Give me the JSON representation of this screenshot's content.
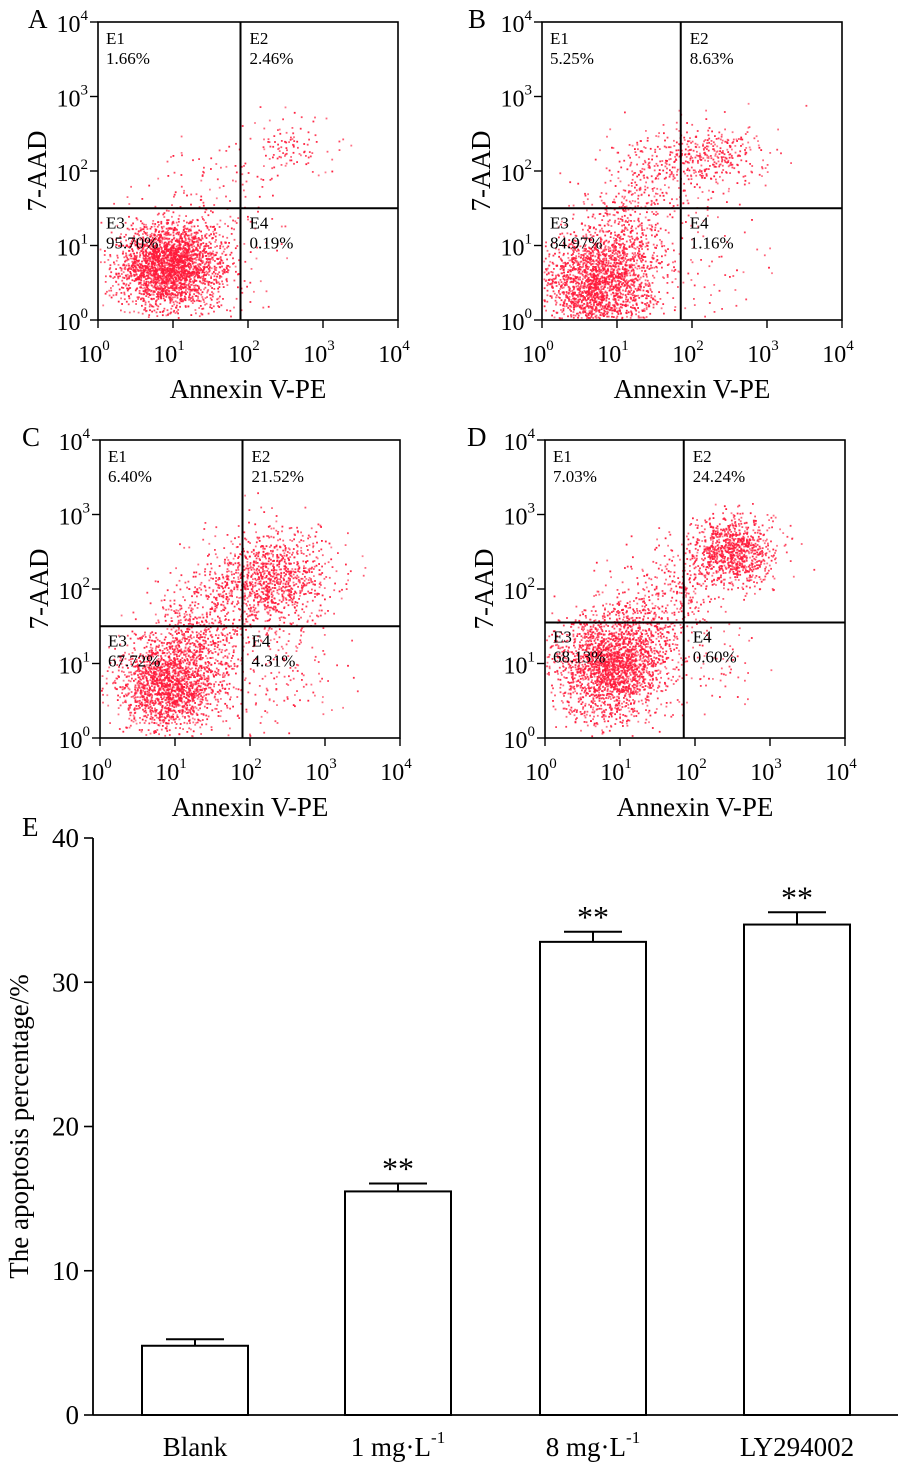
{
  "chart_data": [
    {
      "type": "scatter",
      "panel": "A",
      "xlabel": "Annexin V-PE",
      "ylabel": "7-AAD",
      "xlim": [
        0,
        4
      ],
      "ylim": [
        0,
        4
      ],
      "scale": "log10",
      "tick_exponents": [
        "0",
        "1",
        "2",
        "3",
        "4"
      ],
      "gate": {
        "x": 1.9,
        "y": 1.5
      },
      "quadrants": [
        {
          "id": "E1",
          "label": "E1",
          "value": "1.66%"
        },
        {
          "id": "E2",
          "label": "E2",
          "value": "2.46%"
        },
        {
          "id": "E3",
          "label": "E3",
          "value": "95.70%"
        },
        {
          "id": "E4",
          "label": "E4",
          "value": "0.19%"
        }
      ],
      "clusters": [
        {
          "cx": 0.95,
          "cy": 0.72,
          "sx": 0.34,
          "sy": 0.29,
          "n": 2400
        },
        {
          "cx": 1.15,
          "cy": 0.85,
          "sx": 0.55,
          "sy": 0.45,
          "n": 300
        },
        {
          "cx": 2.55,
          "cy": 2.3,
          "sx": 0.3,
          "sy": 0.2,
          "n": 110
        },
        {
          "cx": 1.55,
          "cy": 1.85,
          "sx": 0.45,
          "sy": 0.25,
          "n": 60
        }
      ]
    },
    {
      "type": "scatter",
      "panel": "B",
      "xlabel": "Annexin V-PE",
      "ylabel": "7-AAD",
      "xlim": [
        0,
        4
      ],
      "ylim": [
        0,
        4
      ],
      "scale": "log10",
      "tick_exponents": [
        "0",
        "1",
        "2",
        "3",
        "4"
      ],
      "gate": {
        "x": 1.85,
        "y": 1.5
      },
      "quadrants": [
        {
          "id": "E1",
          "label": "E1",
          "value": "5.25%"
        },
        {
          "id": "E2",
          "label": "E2",
          "value": "8.63%"
        },
        {
          "id": "E3",
          "label": "E3",
          "value": "84.97%"
        },
        {
          "id": "E4",
          "label": "E4",
          "value": "1.16%"
        }
      ],
      "clusters": [
        {
          "cx": 0.75,
          "cy": 0.45,
          "sx": 0.38,
          "sy": 0.34,
          "n": 1900
        },
        {
          "cx": 1.1,
          "cy": 1.0,
          "sx": 0.3,
          "sy": 0.5,
          "n": 500
        },
        {
          "cx": 2.15,
          "cy": 2.2,
          "sx": 0.42,
          "sy": 0.22,
          "n": 400
        },
        {
          "cx": 1.45,
          "cy": 1.8,
          "sx": 0.35,
          "sy": 0.28,
          "n": 150
        },
        {
          "cx": 2.1,
          "cy": 0.9,
          "sx": 0.5,
          "sy": 0.6,
          "n": 80
        }
      ]
    },
    {
      "type": "scatter",
      "panel": "C",
      "xlabel": "Annexin V-PE",
      "ylabel": "7-AAD",
      "xlim": [
        0,
        4
      ],
      "ylim": [
        0,
        4
      ],
      "scale": "log10",
      "tick_exponents": [
        "0",
        "1",
        "2",
        "3",
        "4"
      ],
      "gate": {
        "x": 1.9,
        "y": 1.5
      },
      "quadrants": [
        {
          "id": "E1",
          "label": "E1",
          "value": "6.40%"
        },
        {
          "id": "E2",
          "label": "E2",
          "value": "21.52%"
        },
        {
          "id": "E3",
          "label": "E3",
          "value": "67.72%"
        },
        {
          "id": "E4",
          "label": "E4",
          "value": "4.31%"
        }
      ],
      "clusters": [
        {
          "cx": 0.9,
          "cy": 0.7,
          "sx": 0.33,
          "sy": 0.3,
          "n": 1700
        },
        {
          "cx": 1.25,
          "cy": 1.25,
          "sx": 0.3,
          "sy": 0.35,
          "n": 500
        },
        {
          "cx": 2.35,
          "cy": 2.15,
          "sx": 0.35,
          "sy": 0.32,
          "n": 900
        },
        {
          "cx": 1.7,
          "cy": 1.95,
          "sx": 0.35,
          "sy": 0.3,
          "n": 300
        },
        {
          "cx": 2.2,
          "cy": 0.9,
          "sx": 0.55,
          "sy": 0.5,
          "n": 200
        }
      ]
    },
    {
      "type": "scatter",
      "panel": "D",
      "xlabel": "Annexin V-PE",
      "ylabel": "7-AAD",
      "xlim": [
        0,
        4
      ],
      "ylim": [
        0,
        4
      ],
      "scale": "log10",
      "tick_exponents": [
        "0",
        "1",
        "2",
        "3",
        "4"
      ],
      "gate": {
        "x": 1.85,
        "y": 1.55
      },
      "quadrants": [
        {
          "id": "E1",
          "label": "E1",
          "value": "7.03%"
        },
        {
          "id": "E2",
          "label": "E2",
          "value": "24.24%"
        },
        {
          "id": "E3",
          "label": "E3",
          "value": "68.13%"
        },
        {
          "id": "E4",
          "label": "E4",
          "value": "0.60%"
        }
      ],
      "clusters": [
        {
          "cx": 0.85,
          "cy": 0.95,
          "sx": 0.38,
          "sy": 0.36,
          "n": 2000
        },
        {
          "cx": 1.25,
          "cy": 1.35,
          "sx": 0.3,
          "sy": 0.3,
          "n": 400
        },
        {
          "cx": 2.5,
          "cy": 2.5,
          "sx": 0.28,
          "sy": 0.22,
          "n": 900
        },
        {
          "cx": 1.75,
          "cy": 2.05,
          "sx": 0.4,
          "sy": 0.3,
          "n": 250
        },
        {
          "cx": 2.2,
          "cy": 1.0,
          "sx": 0.4,
          "sy": 0.4,
          "n": 60
        }
      ]
    },
    {
      "type": "bar",
      "panel": "E",
      "ylabel": "The apoptosis percentage/%",
      "ylim": [
        0,
        40
      ],
      "yticks": [
        0,
        10,
        20,
        30,
        40
      ],
      "categories": [
        {
          "base": "Blank",
          "sup": ""
        },
        {
          "base": "1 mg·L",
          "sup": "-1"
        },
        {
          "base": "8 mg·L",
          "sup": "-1"
        },
        {
          "base": "LY294002",
          "sup": ""
        }
      ],
      "values": [
        4.8,
        15.5,
        32.8,
        34.0
      ],
      "errors": [
        0.45,
        0.55,
        0.7,
        0.85
      ],
      "significance": [
        "",
        "**",
        "**",
        "**"
      ]
    }
  ]
}
